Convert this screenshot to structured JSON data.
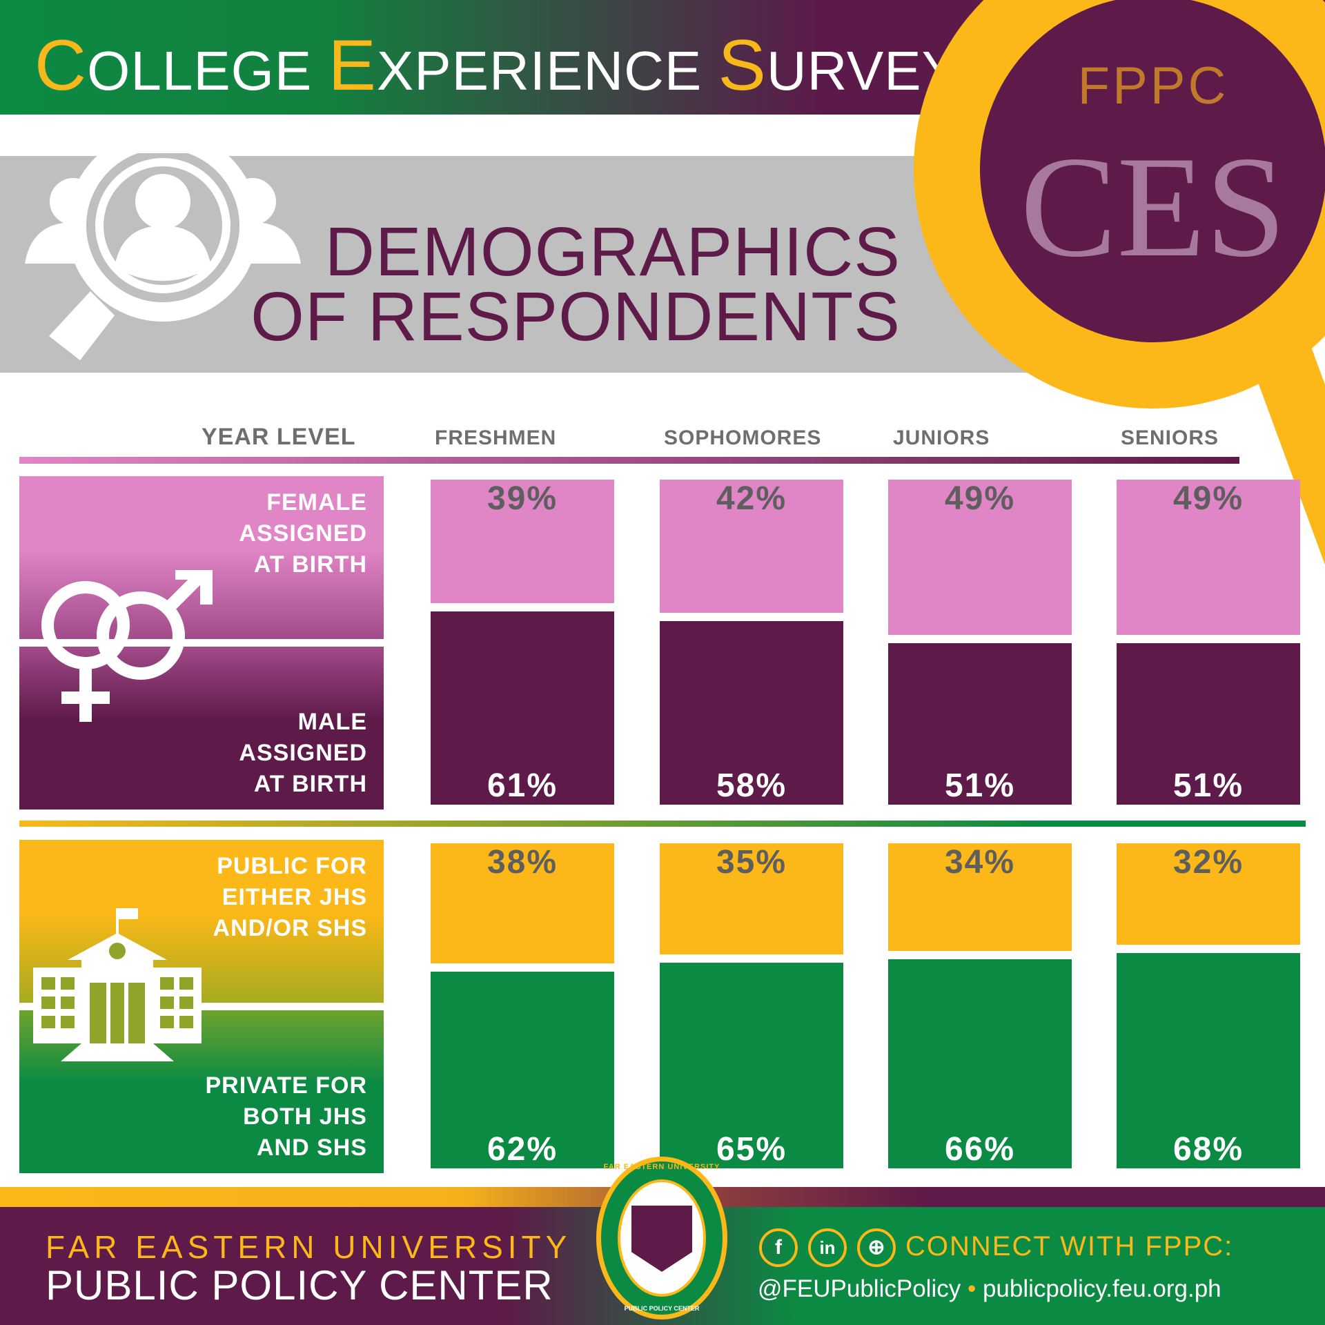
{
  "header": {
    "title_parts": [
      [
        "C",
        "OLLEGE "
      ],
      [
        "E",
        "XPERIENCE "
      ],
      [
        "S",
        "URVEY"
      ]
    ]
  },
  "logo": {
    "fppc": "FPPC",
    "ces": "CES"
  },
  "section": {
    "title_line1": "DEMOGRAPHICS",
    "title_line2": "OF RESPONDENTS"
  },
  "colors": {
    "purple": "#5e1a48",
    "pink": "#e085c5",
    "gold": "#fbb818",
    "green": "#0b8a43",
    "gray": "#bfbfbf"
  },
  "chart_data": {
    "type": "bar",
    "title": "Demographics of Respondents",
    "xlabel": "YEAR LEVEL",
    "categories": [
      "FRESHMEN",
      "SOPHOMORES",
      "JUNIORS",
      "SENIORS"
    ],
    "groups": [
      {
        "name": "sex",
        "series": [
          {
            "name": "FEMALE ASSIGNED AT BIRTH",
            "values": [
              39,
              42,
              49,
              49
            ],
            "labels": [
              "39%",
              "42%",
              "49%",
              "49%"
            ]
          },
          {
            "name": "MALE ASSIGNED AT BIRTH",
            "values": [
              61,
              58,
              51,
              51
            ],
            "labels": [
              "61%",
              "58%",
              "51%",
              "51%"
            ]
          }
        ]
      },
      {
        "name": "school",
        "series": [
          {
            "name": "PUBLIC FOR EITHER JHS AND/OR SHS",
            "values": [
              38,
              35,
              34,
              32
            ],
            "labels": [
              "38%",
              "35%",
              "34%",
              "32%"
            ]
          },
          {
            "name": "PRIVATE FOR BOTH JHS AND SHS",
            "values": [
              62,
              65,
              66,
              68
            ],
            "labels": [
              "62%",
              "65%",
              "66%",
              "68%"
            ]
          }
        ]
      }
    ]
  },
  "panels": {
    "female": [
      "FEMALE",
      "ASSIGNED",
      "AT BIRTH"
    ],
    "male": [
      "MALE",
      "ASSIGNED",
      "AT BIRTH"
    ],
    "public": [
      "PUBLIC FOR",
      "EITHER JHS",
      "AND/OR SHS"
    ],
    "private": [
      "PRIVATE FOR",
      "BOTH JHS",
      "AND SHS"
    ]
  },
  "footer": {
    "org_line1": "FAR EASTERN UNIVERSITY",
    "org_line2": "PUBLIC POLICY CENTER",
    "seal_top": "FAR EASTERN UNIVERSITY",
    "seal_bottom": "PUBLIC POLICY CENTER",
    "connect": "CONNECT WITH FPPC:",
    "social_handle": "@FEUPublicPolicy",
    "bullet": "•",
    "website": "publicpolicy.feu.org.ph",
    "icons": [
      "facebook-icon",
      "linkedin-icon",
      "globe-icon"
    ],
    "fb": "f",
    "in": "in",
    "web": "⊕"
  }
}
